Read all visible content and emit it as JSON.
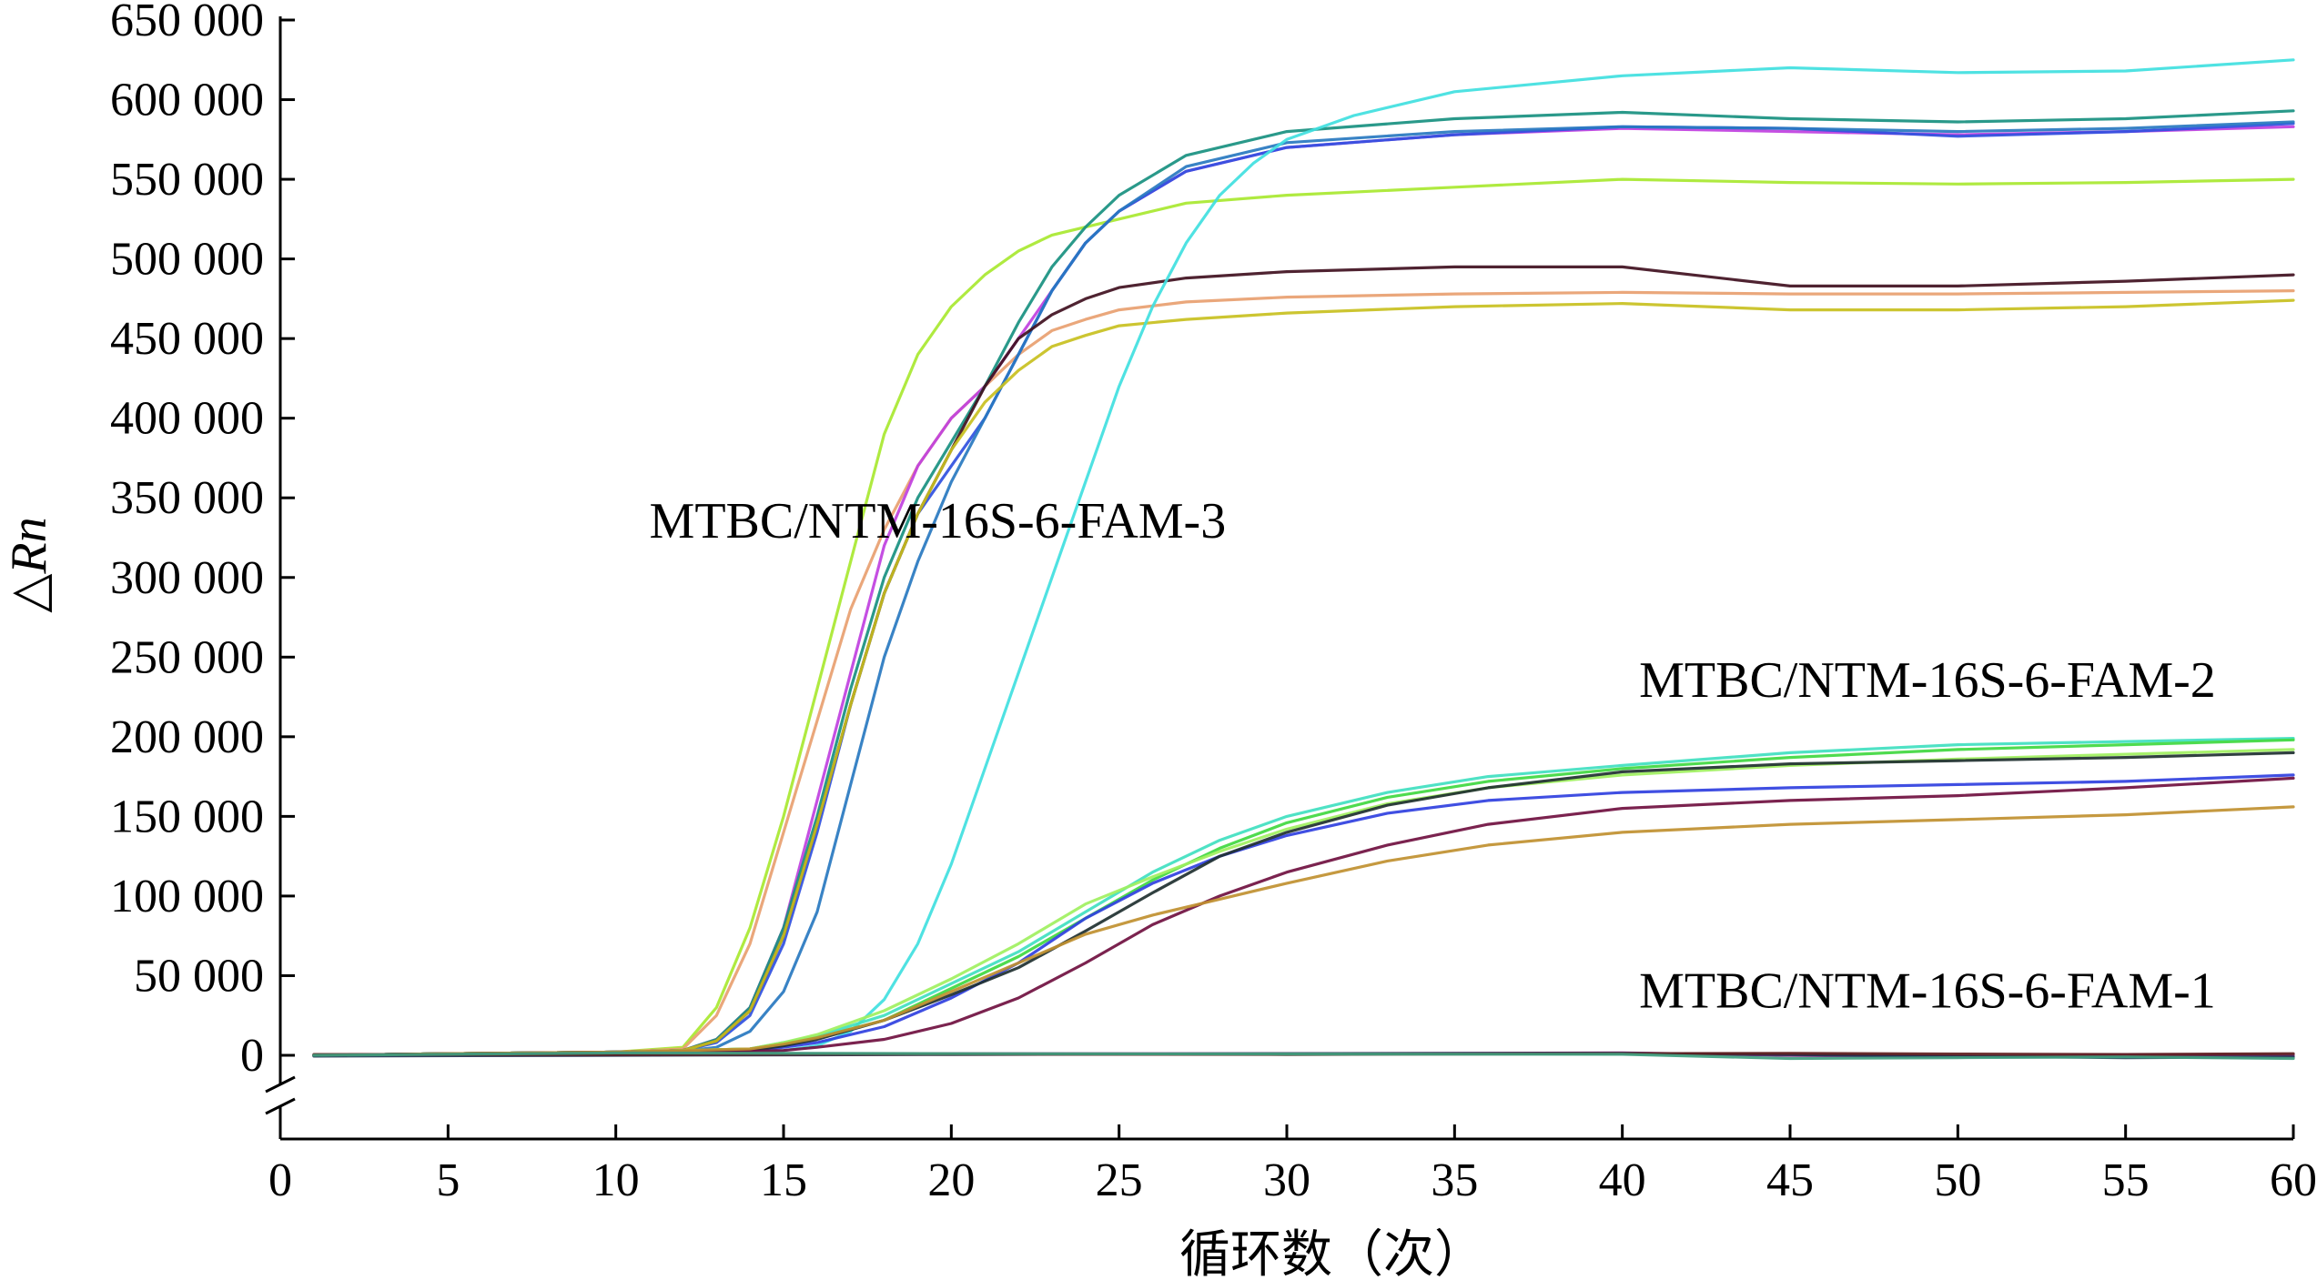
{
  "chart_data": {
    "type": "line",
    "title": "",
    "xlabel": "循环数（次）",
    "ylabel": "△Rn",
    "xlim": [
      0,
      60
    ],
    "ylim": [
      0,
      650000
    ],
    "x_ticks": [
      0,
      5,
      10,
      15,
      20,
      25,
      30,
      35,
      40,
      45,
      50,
      55,
      60
    ],
    "x_tick_labels": [
      "0",
      "5",
      "10",
      "15",
      "20",
      "25",
      "30",
      "35",
      "40",
      "45",
      "50",
      "55",
      "60"
    ],
    "y_ticks": [
      0,
      50000,
      100000,
      150000,
      200000,
      250000,
      300000,
      350000,
      400000,
      450000,
      500000,
      550000,
      600000,
      650000
    ],
    "y_tick_labels": [
      "0",
      "50 000",
      "100 000",
      "150 000",
      "200 000",
      "250 000",
      "300 000",
      "350 000",
      "400 000",
      "450 000",
      "500 000",
      "550 000",
      "600 000",
      "650 000"
    ],
    "y_axis_break": true,
    "grid": false,
    "annotations": [
      {
        "text": "MTBC/NTM-16S-6-FAM-3",
        "x": 11,
        "y": 325000
      },
      {
        "text": "MTBC/NTM-16S-6-FAM-2",
        "x": 40.5,
        "y": 225000
      },
      {
        "text": "MTBC/NTM-16S-6-FAM-1",
        "x": 40.5,
        "y": 30000
      }
    ],
    "series": [
      {
        "group": "FAM-3",
        "color": "#a8e830",
        "x": [
          1,
          5,
          10,
          12,
          13,
          14,
          15,
          16,
          17,
          18,
          19,
          20,
          21,
          22,
          23,
          24,
          25,
          27,
          30,
          35,
          40,
          45,
          50,
          55,
          60
        ],
        "y": [
          0,
          1000,
          2000,
          5000,
          30000,
          80000,
          150000,
          230000,
          310000,
          390000,
          440000,
          470000,
          490000,
          505000,
          515000,
          520000,
          525000,
          535000,
          540000,
          545000,
          550000,
          548000,
          547000,
          548000,
          550000
        ]
      },
      {
        "group": "FAM-3",
        "color": "#e8a070",
        "x": [
          1,
          5,
          10,
          12,
          13,
          14,
          15,
          16,
          17,
          18,
          19,
          20,
          21,
          22,
          23,
          24,
          25,
          27,
          30,
          35,
          40,
          45,
          50,
          55,
          60
        ],
        "y": [
          0,
          1000,
          2000,
          4000,
          25000,
          70000,
          140000,
          210000,
          280000,
          330000,
          370000,
          400000,
          420000,
          440000,
          455000,
          462000,
          468000,
          473000,
          476000,
          478000,
          479000,
          478000,
          478000,
          479000,
          480000
        ]
      },
      {
        "group": "FAM-3",
        "color": "#c040e0",
        "x": [
          1,
          5,
          10,
          12,
          13,
          14,
          15,
          16,
          17,
          18,
          19,
          20,
          21,
          22,
          23,
          24,
          25,
          27,
          30,
          35,
          40,
          45,
          50,
          55,
          60
        ],
        "y": [
          0,
          1000,
          2000,
          3000,
          10000,
          30000,
          80000,
          160000,
          240000,
          320000,
          370000,
          400000,
          420000,
          450000,
          480000,
          510000,
          530000,
          555000,
          570000,
          578000,
          582000,
          580000,
          578000,
          580000,
          583000
        ]
      },
      {
        "group": "FAM-3",
        "color": "#3050e0",
        "x": [
          1,
          5,
          10,
          12,
          13,
          14,
          15,
          16,
          17,
          18,
          19,
          20,
          21,
          22,
          23,
          24,
          25,
          27,
          30,
          35,
          40,
          45,
          50,
          55,
          60
        ],
        "y": [
          0,
          1000,
          2000,
          3000,
          8000,
          25000,
          70000,
          140000,
          220000,
          290000,
          340000,
          370000,
          400000,
          440000,
          480000,
          510000,
          530000,
          555000,
          570000,
          578000,
          583000,
          582000,
          577000,
          580000,
          585000
        ]
      },
      {
        "group": "FAM-3",
        "color": "#2878c0",
        "x": [
          1,
          5,
          10,
          12,
          13,
          14,
          15,
          16,
          17,
          18,
          19,
          20,
          21,
          22,
          23,
          24,
          25,
          27,
          30,
          35,
          40,
          45,
          50,
          55,
          60
        ],
        "y": [
          0,
          1000,
          2000,
          2500,
          5000,
          15000,
          40000,
          90000,
          170000,
          250000,
          310000,
          360000,
          400000,
          440000,
          480000,
          510000,
          530000,
          558000,
          573000,
          580000,
          583000,
          582000,
          580000,
          582000,
          586000
        ]
      },
      {
        "group": "FAM-3",
        "color": "#189080",
        "x": [
          1,
          5,
          10,
          12,
          13,
          14,
          15,
          16,
          17,
          18,
          19,
          20,
          21,
          22,
          23,
          24,
          25,
          27,
          30,
          35,
          40,
          45,
          50,
          55,
          60
        ],
        "y": [
          0,
          1000,
          2000,
          3000,
          10000,
          30000,
          80000,
          150000,
          230000,
          300000,
          350000,
          385000,
          420000,
          460000,
          495000,
          520000,
          540000,
          565000,
          580000,
          588000,
          592000,
          588000,
          586000,
          588000,
          593000
        ]
      },
      {
        "group": "FAM-3",
        "color": "#401020",
        "x": [
          1,
          5,
          10,
          12,
          13,
          14,
          15,
          16,
          17,
          18,
          19,
          20,
          21,
          22,
          23,
          24,
          25,
          27,
          30,
          35,
          40,
          45,
          50,
          55,
          60
        ],
        "y": [
          0,
          1000,
          2000,
          3000,
          9000,
          28000,
          75000,
          145000,
          220000,
          290000,
          340000,
          380000,
          420000,
          450000,
          465000,
          475000,
          482000,
          488000,
          492000,
          495000,
          495000,
          483000,
          483000,
          486000,
          490000
        ]
      },
      {
        "group": "FAM-3",
        "color": "#c8c020",
        "x": [
          1,
          5,
          10,
          12,
          13,
          14,
          15,
          16,
          17,
          18,
          19,
          20,
          21,
          22,
          23,
          24,
          25,
          27,
          30,
          35,
          40,
          45,
          50,
          55,
          60
        ],
        "y": [
          0,
          1000,
          2000,
          3000,
          9000,
          28000,
          75000,
          145000,
          220000,
          290000,
          340000,
          380000,
          410000,
          430000,
          445000,
          452000,
          458000,
          462000,
          466000,
          470000,
          472000,
          468000,
          468000,
          470000,
          474000
        ]
      },
      {
        "group": "FAM-3",
        "color": "#40e0e0",
        "x": [
          1,
          5,
          10,
          15,
          16,
          17,
          18,
          19,
          20,
          21,
          22,
          23,
          24,
          25,
          26,
          27,
          28,
          29,
          30,
          32,
          35,
          40,
          45,
          50,
          55,
          60
        ],
        "y": [
          0,
          1000,
          2000,
          3000,
          6000,
          15000,
          35000,
          70000,
          120000,
          180000,
          240000,
          300000,
          360000,
          420000,
          470000,
          510000,
          540000,
          560000,
          575000,
          590000,
          605000,
          615000,
          620000,
          617000,
          618000,
          625000
        ]
      },
      {
        "group": "FAM-2",
        "color": "#40e0c0",
        "x": [
          1,
          5,
          10,
          14,
          15,
          16,
          18,
          20,
          22,
          24,
          26,
          28,
          30,
          33,
          36,
          40,
          45,
          50,
          55,
          60
        ],
        "y": [
          0,
          1000,
          2000,
          4000,
          8000,
          12000,
          25000,
          45000,
          65000,
          90000,
          115000,
          135000,
          150000,
          165000,
          175000,
          182000,
          190000,
          195000,
          197000,
          199000
        ]
      },
      {
        "group": "FAM-2",
        "color": "#40d840",
        "x": [
          1,
          5,
          10,
          14,
          15,
          16,
          18,
          20,
          22,
          24,
          26,
          28,
          30,
          33,
          36,
          40,
          45,
          50,
          55,
          60
        ],
        "y": [
          0,
          1000,
          2000,
          4000,
          7000,
          11000,
          22000,
          42000,
          62000,
          86000,
          110000,
          130000,
          146000,
          162000,
          172000,
          180000,
          187000,
          192000,
          195000,
          198000
        ]
      },
      {
        "group": "FAM-2",
        "color": "#a0f060",
        "x": [
          1,
          5,
          10,
          14,
          15,
          16,
          18,
          20,
          22,
          24,
          26,
          28,
          30,
          33,
          36,
          40,
          45,
          50,
          55,
          60
        ],
        "y": [
          0,
          1000,
          2000,
          4000,
          8000,
          13000,
          28000,
          48000,
          70000,
          95000,
          112000,
          128000,
          142000,
          158000,
          168000,
          176000,
          182000,
          186000,
          189000,
          192000
        ]
      },
      {
        "group": "FAM-2",
        "color": "#3040e0",
        "x": [
          1,
          5,
          10,
          14,
          15,
          16,
          18,
          20,
          22,
          24,
          26,
          28,
          30,
          33,
          36,
          40,
          45,
          50,
          55,
          60
        ],
        "y": [
          0,
          1000,
          2000,
          3000,
          5000,
          8000,
          18000,
          36000,
          58000,
          86000,
          108000,
          125000,
          138000,
          152000,
          160000,
          165000,
          168000,
          170000,
          172000,
          176000
        ]
      },
      {
        "group": "FAM-2",
        "color": "#203030",
        "x": [
          1,
          5,
          10,
          14,
          15,
          16,
          18,
          20,
          22,
          24,
          26,
          28,
          30,
          33,
          36,
          40,
          45,
          50,
          55,
          60
        ],
        "y": [
          0,
          1000,
          2000,
          3000,
          6000,
          10000,
          22000,
          38000,
          55000,
          78000,
          102000,
          125000,
          140000,
          157000,
          168000,
          178000,
          183000,
          185000,
          187000,
          190000
        ]
      },
      {
        "group": "FAM-2",
        "color": "#701040",
        "x": [
          1,
          5,
          10,
          14,
          15,
          16,
          18,
          20,
          22,
          24,
          26,
          28,
          30,
          33,
          36,
          40,
          45,
          50,
          55,
          60
        ],
        "y": [
          0,
          1000,
          2000,
          2500,
          3000,
          5000,
          10000,
          20000,
          36000,
          58000,
          82000,
          100000,
          115000,
          132000,
          145000,
          155000,
          160000,
          163000,
          168000,
          174000
        ]
      },
      {
        "group": "FAM-2",
        "color": "#c09030",
        "x": [
          1,
          5,
          10,
          14,
          15,
          16,
          18,
          20,
          22,
          24,
          26,
          28,
          30,
          33,
          36,
          40,
          45,
          50,
          55,
          60
        ],
        "y": [
          0,
          1000,
          2000,
          4000,
          7000,
          11000,
          22000,
          40000,
          58000,
          76000,
          88000,
          98000,
          108000,
          122000,
          132000,
          140000,
          145000,
          148000,
          151000,
          156000
        ]
      },
      {
        "group": "FAM-1",
        "color": "#802080",
        "x": [
          1,
          10,
          20,
          30,
          40,
          45,
          50,
          55,
          60
        ],
        "y": [
          0,
          1000,
          1000,
          1000,
          1500,
          0,
          -1000,
          500,
          0
        ]
      },
      {
        "group": "FAM-1",
        "color": "#203050",
        "x": [
          1,
          10,
          20,
          30,
          40,
          45,
          50,
          55,
          60
        ],
        "y": [
          -500,
          0,
          500,
          1000,
          1200,
          500,
          -500,
          -1500,
          -1000
        ]
      },
      {
        "group": "FAM-1",
        "color": "#602020",
        "x": [
          1,
          10,
          20,
          30,
          40,
          45,
          50,
          55,
          60
        ],
        "y": [
          500,
          500,
          800,
          500,
          1000,
          1200,
          800,
          500,
          1000
        ]
      },
      {
        "group": "FAM-1",
        "color": "#40a080",
        "x": [
          1,
          10,
          20,
          30,
          40,
          45,
          50,
          55,
          60
        ],
        "y": [
          0,
          1500,
          1000,
          800,
          600,
          -2000,
          -1500,
          -1000,
          -2000
        ]
      }
    ]
  }
}
